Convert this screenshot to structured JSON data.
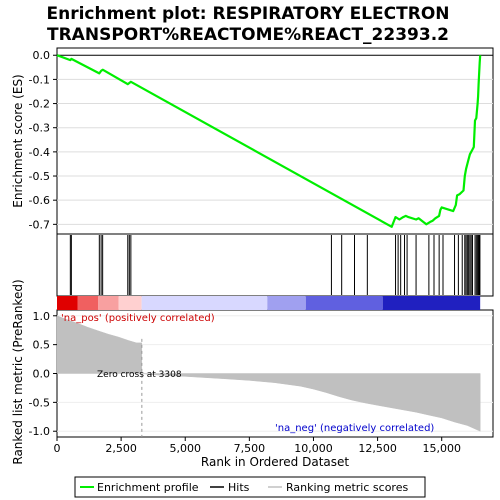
{
  "chart_data": {
    "type": "line",
    "title_lines": [
      "Enrichment plot: RESPIRATORY ELECTRON",
      "TRANSPORT%REACTOME%REACT_22393.2"
    ],
    "es_panel": {
      "ylabel": "Enrichment score (ES)",
      "ylim": [
        -0.74,
        0.03
      ],
      "yticks": [
        0.0,
        -0.1,
        -0.2,
        -0.3,
        -0.4,
        -0.5,
        -0.6,
        -0.7
      ],
      "ytick_labels": [
        "0.0",
        "-0.1",
        "-0.2",
        "-0.3",
        "-0.4",
        "-0.5",
        "-0.6",
        "-0.7"
      ],
      "line_color": "#00ee00",
      "series": {
        "name": "Enrichment profile",
        "x": [
          0,
          520,
          560,
          1650,
          1720,
          1780,
          2760,
          2820,
          2880,
          13050,
          13200,
          13350,
          13500,
          13600,
          13700,
          14000,
          14100,
          14400,
          14550,
          14650,
          14750,
          14900,
          14950,
          15000,
          15450,
          15550,
          15600,
          15700,
          15850,
          15900,
          15950,
          16050,
          16100,
          16200,
          16250,
          16300,
          16350,
          16400,
          16420,
          16440,
          16460,
          16480,
          16500
        ],
        "y": [
          0.0,
          -0.02,
          -0.015,
          -0.075,
          -0.065,
          -0.06,
          -0.12,
          -0.115,
          -0.11,
          -0.71,
          -0.67,
          -0.68,
          -0.67,
          -0.665,
          -0.67,
          -0.68,
          -0.675,
          -0.7,
          -0.69,
          -0.685,
          -0.675,
          -0.665,
          -0.64,
          -0.63,
          -0.645,
          -0.62,
          -0.58,
          -0.575,
          -0.56,
          -0.5,
          -0.47,
          -0.43,
          -0.41,
          -0.39,
          -0.38,
          -0.27,
          -0.26,
          -0.2,
          -0.17,
          -0.12,
          -0.07,
          -0.03,
          0.0
        ]
      }
    },
    "hits": [
      520,
      560,
      1650,
      1720,
      1780,
      2760,
      2820,
      2880,
      10700,
      11100,
      11600,
      12100,
      13200,
      13300,
      13400,
      13550,
      13650,
      14000,
      14500,
      14700,
      14900,
      15050,
      15500,
      15650,
      15800,
      15900,
      15950,
      16000,
      16050,
      16100,
      16150,
      16200,
      16300,
      16350,
      16400,
      16430,
      16460,
      16490
    ],
    "rank_panel": {
      "ylabel": "Ranked list metric (PreRanked)",
      "xlabel": "Rank in Ordered Dataset",
      "xlim": [
        0,
        17000
      ],
      "xticks": [
        0,
        2500,
        5000,
        7500,
        10000,
        12500,
        15000
      ],
      "xtick_labels": [
        "0",
        "2,500",
        "5,000",
        "7,500",
        "10,000",
        "12,500",
        "15,000"
      ],
      "ylim": [
        -1.1,
        1.1
      ],
      "yticks": [
        1.0,
        0.5,
        0.0,
        -0.5,
        -1.0
      ],
      "ytick_labels": [
        "1.0",
        "0.5",
        "0.0",
        "-0.5",
        "-1.0"
      ],
      "metric_x": [
        0,
        400,
        800,
        1200,
        1600,
        2000,
        2400,
        2800,
        3100,
        3308,
        3700,
        5000,
        6500,
        7500,
        8500,
        9500,
        10000,
        10500,
        11000,
        11500,
        12000,
        12500,
        13000,
        13500,
        14000,
        14500,
        15000,
        15500,
        16000,
        16300,
        16500
      ],
      "metric_y": [
        1.0,
        0.93,
        0.87,
        0.8,
        0.74,
        0.68,
        0.63,
        0.57,
        0.53,
        0.0,
        -0.02,
        -0.05,
        -0.09,
        -0.12,
        -0.16,
        -0.22,
        -0.27,
        -0.33,
        -0.4,
        -0.46,
        -0.51,
        -0.55,
        -0.59,
        -0.63,
        -0.67,
        -0.72,
        -0.77,
        -0.84,
        -0.9,
        -0.96,
        -1.0
      ],
      "zero_cross": 3308,
      "annotations": {
        "pos": "'na_pos' (positively correlated)",
        "zero": "Zero cross at 3308",
        "neg": "'na_neg' (negatively correlated)"
      }
    },
    "colors": {
      "es_line": "#00ee00",
      "metric_fill": "#c0c0c0",
      "pos_label": "#cc0000",
      "neg_label": "#0000cc",
      "bar_segments": [
        "#e00000",
        "#f06060",
        "#f8a0a0",
        "#ffd0d0",
        "#d8d8ff",
        "#a0a0f0",
        "#6060e0",
        "#2020c0"
      ]
    },
    "legend": [
      {
        "label": "Enrichment profile",
        "icon": "green-line"
      },
      {
        "label": "Hits",
        "icon": "black-line"
      },
      {
        "label": "Ranking metric scores",
        "icon": "gray-line"
      }
    ]
  }
}
